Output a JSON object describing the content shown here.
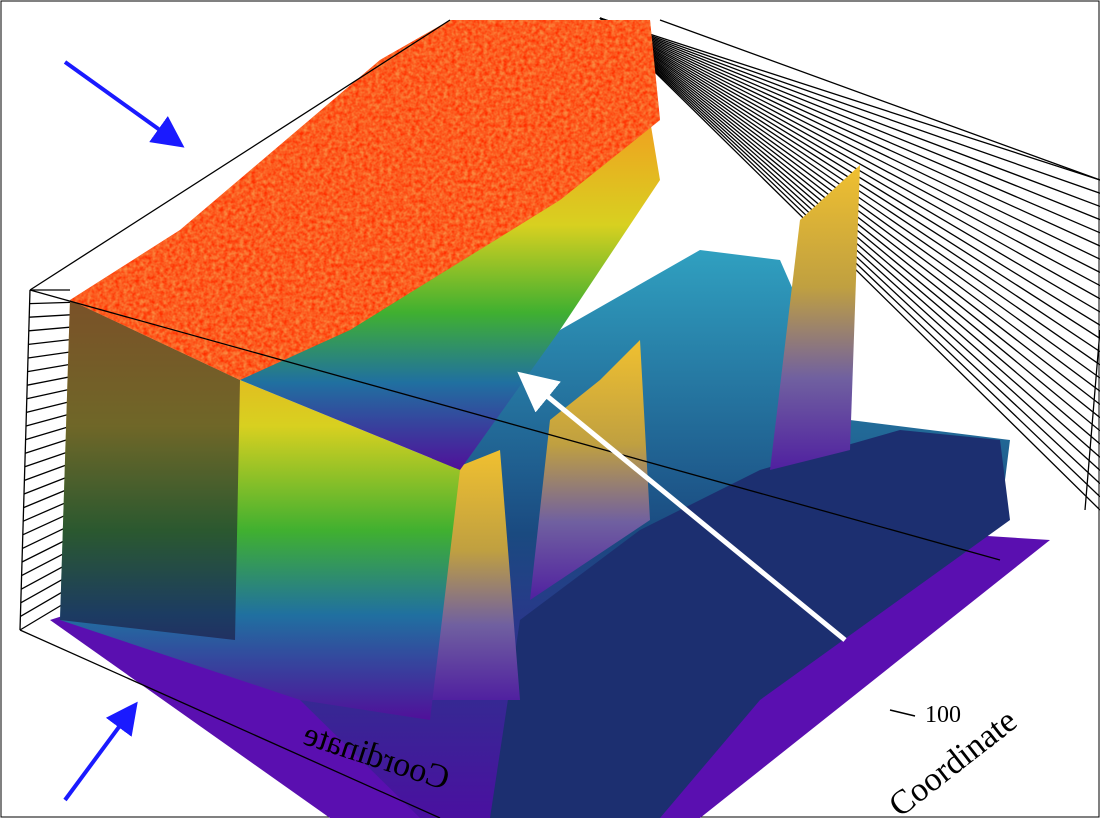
{
  "axes": {
    "x_label": "Coordinate",
    "y_label": "Coordinate",
    "y_tick": "100"
  }
}
